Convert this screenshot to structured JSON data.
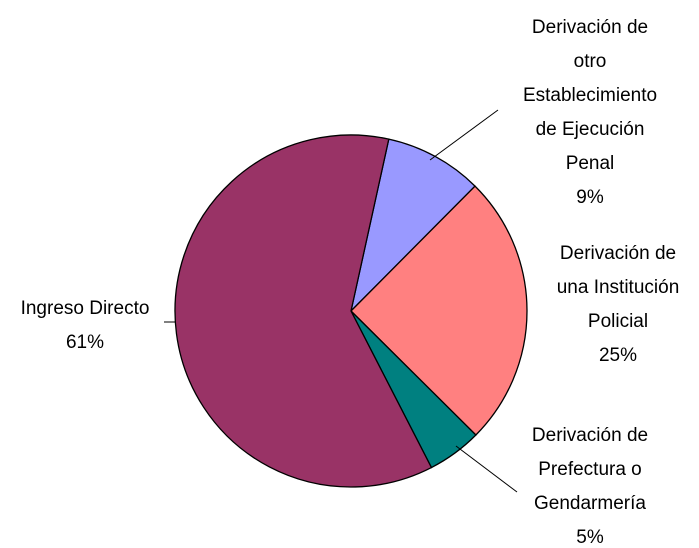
{
  "chart_data": {
    "type": "pie",
    "categories": [
      [
        "Derivación de",
        "otro",
        "Establecimiento",
        "de Ejecución",
        "Penal"
      ],
      [
        "Derivación de",
        "una Institución",
        "Policial"
      ],
      [
        "Derivación de",
        "Prefectura o",
        "Gendarmería"
      ],
      [
        "Ingreso Directo"
      ]
    ],
    "values": [
      9,
      25,
      5,
      61
    ],
    "value_labels": [
      "9%",
      "25%",
      "5%",
      "61%"
    ],
    "colors": [
      "#9999ff",
      "#ff8080",
      "#008080",
      "#993366"
    ]
  }
}
